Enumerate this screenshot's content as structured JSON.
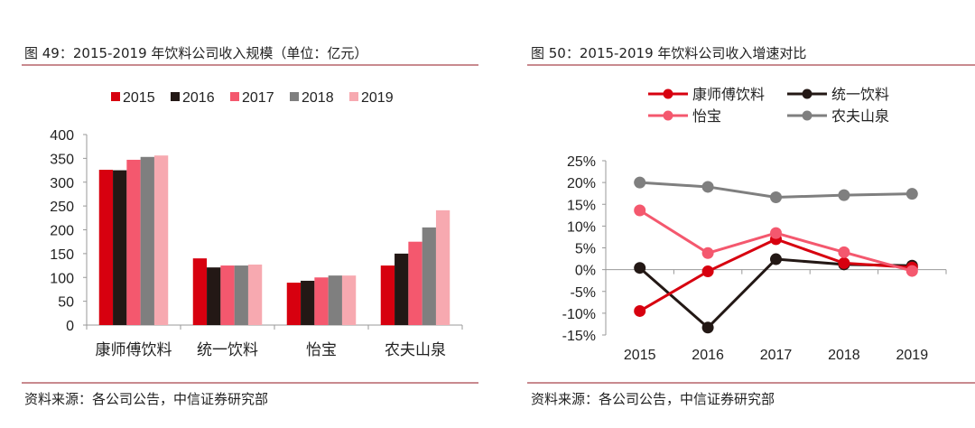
{
  "left_panel": {
    "title": "图 49：2015-2019 年饮料公司收入规模（单位：亿元）",
    "source": "资料来源：各公司公告，中信证券研究部"
  },
  "right_panel": {
    "title": "图 50：2015-2019 年饮料公司收入增速对比",
    "source": "资料来源：各公司公告，中信证券研究部"
  },
  "chart_data": [
    {
      "type": "bar",
      "title": "图 49：2015-2019 年饮料公司收入规模（单位：亿元）",
      "xlabel": "",
      "ylabel": "",
      "ylim": [
        0,
        400
      ],
      "yticks": [
        "0",
        "50",
        "100",
        "150",
        "200",
        "250",
        "300",
        "350",
        "400"
      ],
      "ytick_values": [
        0,
        50,
        100,
        150,
        200,
        250,
        300,
        350,
        400
      ],
      "categories": [
        "康师傅饮料",
        "统一饮料",
        "怡宝",
        "农夫山泉"
      ],
      "legend_position": "top",
      "grid": false,
      "series": [
        {
          "name": "2015",
          "color": "#d7000f",
          "values": [
            326,
            140,
            89,
            125
          ]
        },
        {
          "name": "2016",
          "color": "#231815",
          "values": [
            325,
            121,
            93,
            150
          ]
        },
        {
          "name": "2017",
          "color": "#f4586e",
          "values": [
            347,
            125,
            100,
            175
          ]
        },
        {
          "name": "2018",
          "color": "#7f7f7f",
          "values": [
            353,
            125,
            104,
            205
          ]
        },
        {
          "name": "2019",
          "color": "#f7a9b0",
          "values": [
            356,
            127,
            104,
            241
          ]
        }
      ]
    },
    {
      "type": "line",
      "title": "图 50：2015-2019 年饮料公司收入增速对比",
      "xlabel": "",
      "ylabel": "",
      "ylim": [
        -15,
        25
      ],
      "yticks": [
        "-15%",
        "-10%",
        "-5%",
        "0%",
        "5%",
        "10%",
        "15%",
        "20%",
        "25%"
      ],
      "ytick_values": [
        -15,
        -10,
        -5,
        0,
        5,
        10,
        15,
        20,
        25
      ],
      "x": [
        "2015",
        "2016",
        "2017",
        "2018",
        "2019"
      ],
      "legend_position": "top",
      "grid": false,
      "series": [
        {
          "name": "康师傅饮料",
          "color": "#d7000f",
          "values": [
            -9.5,
            -0.4,
            7.0,
            1.5,
            0.5
          ]
        },
        {
          "name": "统一饮料",
          "color": "#231815",
          "values": [
            0.4,
            -13.3,
            2.4,
            1.2,
            0.9
          ]
        },
        {
          "name": "怡宝",
          "color": "#f4586e",
          "values": [
            13.6,
            3.8,
            8.4,
            4.0,
            -0.3
          ]
        },
        {
          "name": "农夫山泉",
          "color": "#7f7f7f",
          "values": [
            20.0,
            19.0,
            16.6,
            17.1,
            17.4
          ]
        }
      ]
    }
  ]
}
